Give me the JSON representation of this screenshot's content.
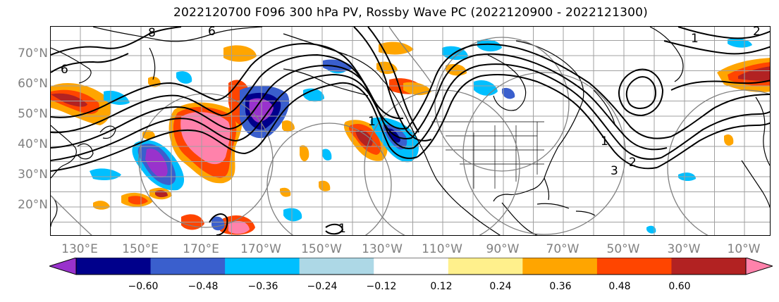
{
  "title": "2022120700 F096 300 hPa PV, Rossby Wave PC (2022120900 - 2022121300)",
  "lat_labels": [
    "70°N",
    "60°N",
    "50°N",
    "40°N",
    "30°N",
    "20°N"
  ],
  "lon_labels": [
    "130°E",
    "150°E",
    "170°E",
    "170°W",
    "150°W",
    "130°W",
    "110°W",
    "90°W",
    "70°W",
    "50°W",
    "30°W",
    "10°W"
  ],
  "contour_labels": [
    "8",
    "6",
    "6",
    "1",
    "2",
    "1",
    "1",
    "2",
    "3",
    "1"
  ],
  "colorbar": {
    "tick_labels": [
      "−0.60",
      "−0.48",
      "−0.36",
      "−0.24",
      "−0.12",
      "0.12",
      "0.24",
      "0.36",
      "0.48",
      "0.60"
    ],
    "colors": [
      "#9932cc",
      "#00008b",
      "#3a5fcd",
      "#00bfff",
      "#add8e6",
      "#ffffff",
      "#fff08c",
      "#ffa500",
      "#ff4500",
      "#b22222",
      "#ff82ab"
    ]
  },
  "colors": {
    "contour": "#000000",
    "circle": "#808080",
    "grid": "#a0a0a0",
    "coast": "#000000",
    "axis_label": "#808080"
  }
}
